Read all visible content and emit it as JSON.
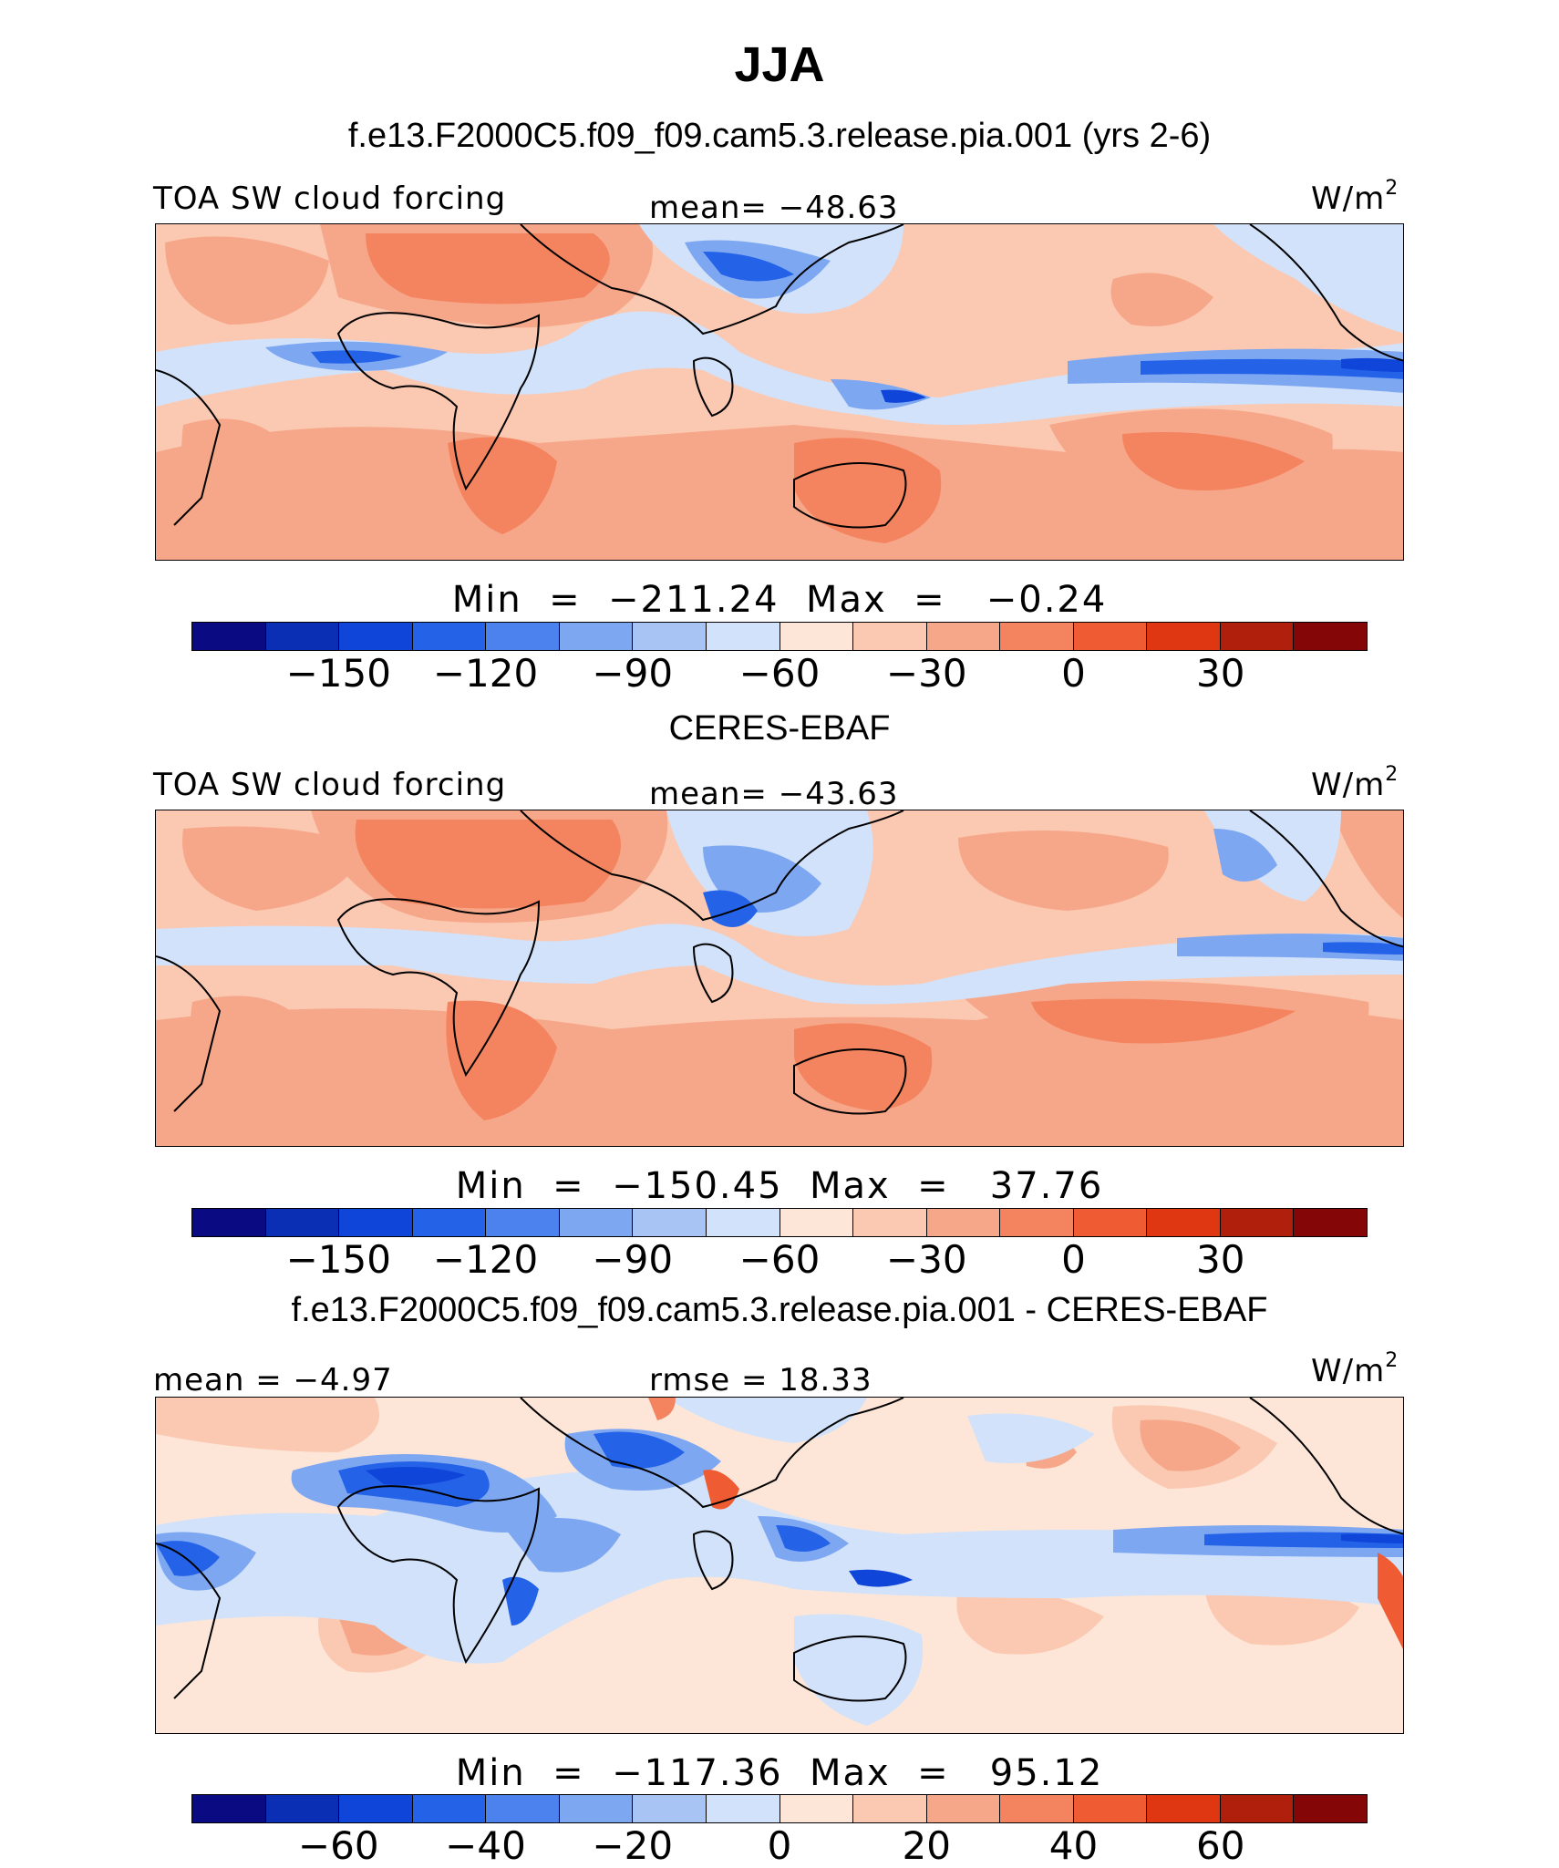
{
  "title": "JJA",
  "panels": [
    {
      "heading": "f.e13.F2000C5.f09_f09.cam5.3.release.pia.001 (yrs 2-6)",
      "left_label": "TOA SW cloud forcing",
      "center_label": "mean= −48.63",
      "units": "W/m",
      "units_sup": "2",
      "min_max": "Min  =  −211.24  Max  =   −0.24",
      "colorbar_ticks": [
        "−150",
        "−120",
        "−90",
        "−60",
        "−30",
        "0",
        "30"
      ]
    },
    {
      "heading": "CERES-EBAF",
      "left_label": "TOA SW cloud forcing",
      "center_label": "mean= −43.63",
      "units": "W/m",
      "units_sup": "2",
      "min_max": "Min  =  −150.45  Max  =   37.76",
      "colorbar_ticks": [
        "−150",
        "−120",
        "−90",
        "−60",
        "−30",
        "0",
        "30"
      ]
    },
    {
      "heading": "f.e13.F2000C5.f09_f09.cam5.3.release.pia.001 - CERES-EBAF",
      "left_label": "mean =  −4.97",
      "center_label": "rmse =  18.33",
      "units": "W/m",
      "units_sup": "2",
      "min_max": "Min  =  −117.36  Max  =   95.12",
      "colorbar_ticks": [
        "−60",
        "−40",
        "−20",
        "0",
        "20",
        "40",
        "60"
      ]
    }
  ],
  "colorbar_colors": [
    "#0a0a82",
    "#0a2fb5",
    "#0f45d9",
    "#2463e8",
    "#4c82ee",
    "#7ea7f2",
    "#a8c4f5",
    "#d1e2fa",
    "#fde6d8",
    "#fbc9b2",
    "#f7a789",
    "#f4845f",
    "#ef5b32",
    "#de3712",
    "#b01f0c",
    "#850606"
  ],
  "map_colors": {
    "ocean_base": "#fbc9b2",
    "light_blue": "#d1e2fa",
    "mid_blue": "#7ea7f2",
    "strong_blue": "#2463e8",
    "deep_blue": "#0f45d9",
    "light_orange": "#f7a789",
    "orange": "#f4845f",
    "red": "#ef5b32",
    "near_zero": "#fde6d8",
    "coast": "#000000"
  },
  "chart_data": {
    "type": "heatmap",
    "title": "JJA",
    "variable": "TOA SW cloud forcing",
    "units": "W/m2",
    "maps": [
      {
        "name": "f.e13.F2000C5.f09_f09.cam5.3.release.pia.001 (yrs 2-6)",
        "mean": -48.63,
        "min": -211.24,
        "max": -0.24,
        "levels": [
          -165,
          -150,
          -135,
          -120,
          -105,
          -90,
          -75,
          -60,
          -45,
          -30,
          -15,
          0,
          15,
          30,
          45
        ]
      },
      {
        "name": "CERES-EBAF",
        "mean": -43.63,
        "min": -150.45,
        "max": 37.76,
        "levels": [
          -165,
          -150,
          -135,
          -120,
          -105,
          -90,
          -75,
          -60,
          -45,
          -30,
          -15,
          0,
          15,
          30,
          45
        ]
      },
      {
        "name": "f.e13.F2000C5.f09_f09.cam5.3.release.pia.001 - CERES-EBAF",
        "mean": -4.97,
        "rmse": 18.33,
        "min": -117.36,
        "max": 95.12,
        "levels": [
          -70,
          -60,
          -50,
          -40,
          -30,
          -20,
          -10,
          0,
          10,
          20,
          30,
          40,
          50,
          60,
          70
        ]
      }
    ]
  }
}
